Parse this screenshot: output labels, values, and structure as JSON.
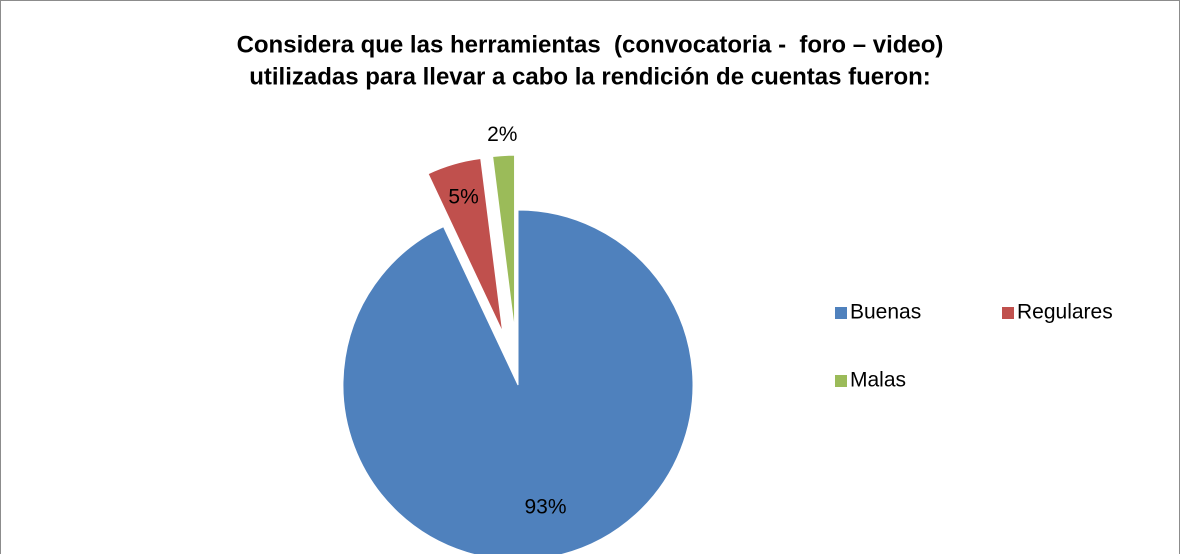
{
  "chart_data": {
    "type": "pie",
    "title": [
      "Considera que las herramientas  (convocatoria -  foro – video)",
      "utilizadas para llevar a cabo la rendición de cuentas fueron:"
    ],
    "categories": [
      "Buenas",
      "Regulares",
      "Malas"
    ],
    "values": [
      93,
      5,
      2
    ],
    "value_labels": [
      "93%",
      "5%",
      "2%"
    ],
    "colors": [
      "#4f81bd",
      "#c0504d",
      "#9bbb59"
    ],
    "legend": "right"
  }
}
